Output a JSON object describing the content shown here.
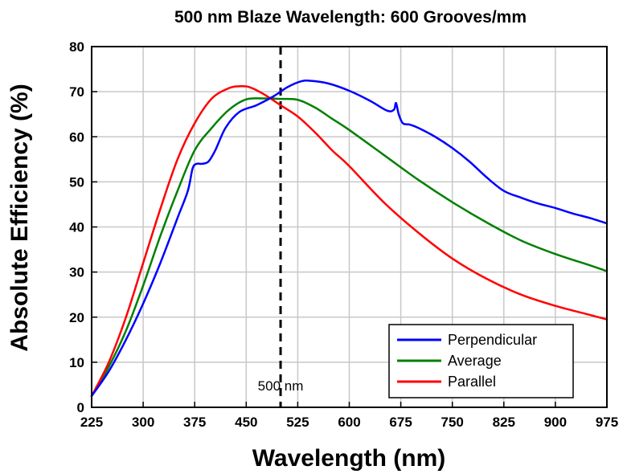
{
  "chart_data": {
    "type": "line",
    "title": "500 nm Blaze Wavelength: 600 Grooves/mm",
    "xlabel": "Wavelength (nm)",
    "ylabel": "Absolute Efficiency (%)",
    "xlim": [
      225,
      975
    ],
    "ylim": [
      0,
      80
    ],
    "xticks": [
      225,
      300,
      375,
      450,
      525,
      600,
      675,
      750,
      825,
      900,
      975
    ],
    "yticks": [
      0,
      10,
      20,
      30,
      40,
      50,
      60,
      70,
      80
    ],
    "grid": true,
    "legend_position": "bottom-right",
    "annotations": [
      {
        "type": "vertical-dashed-line",
        "x": 500,
        "label": "500 nm",
        "color": "#000000"
      }
    ],
    "series": [
      {
        "name": "Perpendicular",
        "color": "#0000ff",
        "x": [
          225,
          250,
          275,
          300,
          325,
          350,
          365,
          372,
          378,
          385,
          395,
          405,
          420,
          440,
          465,
          490,
          510,
          530,
          545,
          570,
          600,
          630,
          655,
          665,
          668,
          672,
          678,
          688,
          700,
          725,
          750,
          775,
          800,
          825,
          850,
          875,
          900,
          925,
          950,
          975
        ],
        "y": [
          2.5,
          8,
          15,
          23,
          32,
          42,
          48,
          53,
          54,
          54,
          54.5,
          57,
          62,
          65.5,
          67,
          69,
          71,
          72.3,
          72.4,
          71.8,
          70.2,
          68,
          65.8,
          66,
          67.5,
          65,
          63,
          62.7,
          62,
          60,
          57.5,
          54.5,
          51,
          48,
          46.5,
          45.2,
          44.2,
          43,
          42,
          40.8
        ]
      },
      {
        "name": "Average",
        "color": "#008000",
        "x": [
          225,
          250,
          275,
          300,
          325,
          350,
          375,
          400,
          425,
          450,
          475,
          500,
          525,
          550,
          575,
          600,
          650,
          700,
          750,
          800,
          850,
          900,
          950,
          975
        ],
        "y": [
          2.5,
          9,
          17,
          27,
          38,
          48,
          57,
          62,
          66,
          68.3,
          68.5,
          68.4,
          68.2,
          66.5,
          64,
          61.5,
          56,
          50.5,
          45.5,
          41,
          37,
          34,
          31.5,
          30.2
        ]
      },
      {
        "name": "Parallel",
        "color": "#ff0000",
        "x": [
          225,
          250,
          275,
          300,
          325,
          350,
          375,
          400,
          425,
          440,
          455,
          475,
          500,
          525,
          550,
          575,
          600,
          650,
          700,
          750,
          800,
          850,
          900,
          950,
          975
        ],
        "y": [
          2.5,
          10,
          20,
          32,
          44,
          55,
          63,
          68.5,
          70.8,
          71.2,
          71,
          69.5,
          67,
          64.5,
          61,
          57,
          53.5,
          45.5,
          38.8,
          33,
          28.5,
          25,
          22.5,
          20.5,
          19.5
        ]
      }
    ]
  }
}
